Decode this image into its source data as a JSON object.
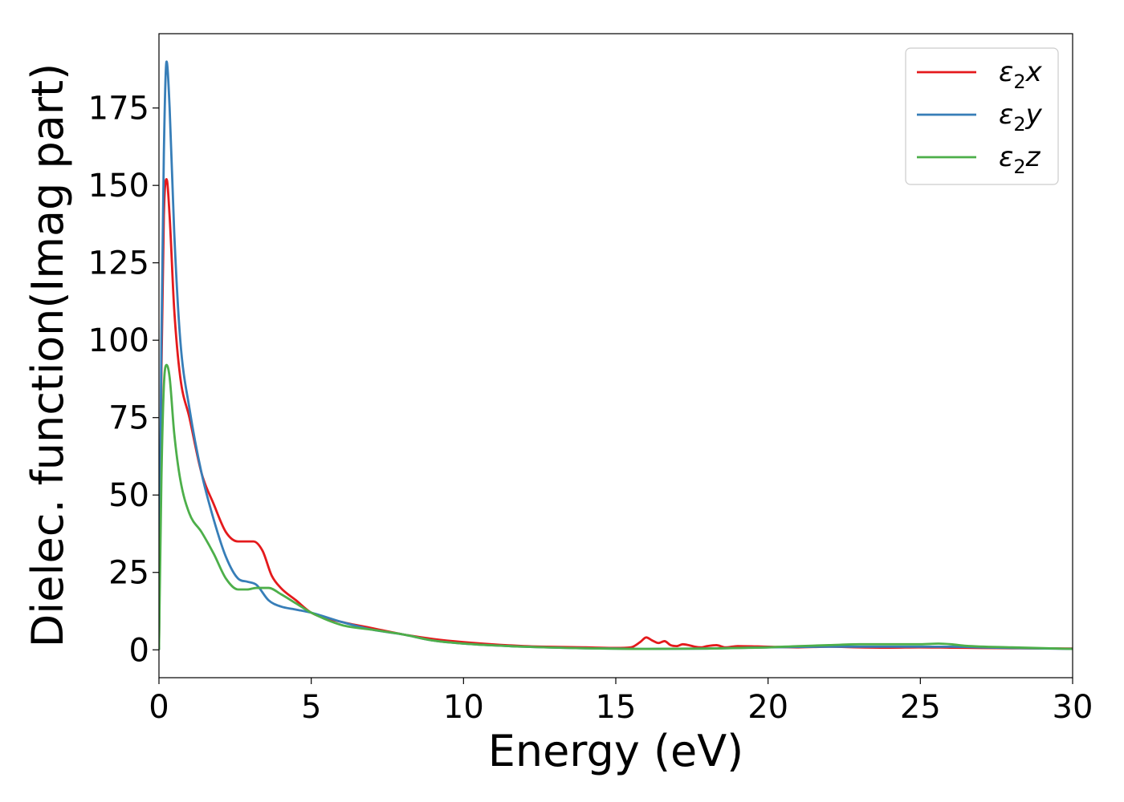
{
  "chart_data": {
    "type": "line",
    "xlabel": "Energy (eV)",
    "ylabel": "Dielec. function(Imag part)",
    "xlim": [
      0,
      30
    ],
    "ylim": [
      -9,
      199
    ],
    "xticks": [
      0,
      5,
      10,
      15,
      20,
      25,
      30
    ],
    "yticks": [
      0,
      25,
      50,
      75,
      100,
      125,
      150,
      175
    ],
    "grid": false,
    "legend_position": "top-right",
    "series": [
      {
        "name": "ε2x",
        "legend": {
          "base": "ε",
          "sub": "2",
          "suffix": "x"
        },
        "color": "#e41a1c",
        "x": [
          0,
          0.08,
          0.16,
          0.25,
          0.35,
          0.5,
          0.7,
          1.0,
          1.4,
          1.8,
          2.2,
          2.6,
          2.9,
          3.1,
          3.4,
          3.7,
          4.0,
          4.5,
          5.0,
          6.0,
          7.0,
          8.0,
          9.0,
          10.0,
          12.0,
          14.0,
          15.0,
          15.5,
          15.8,
          16.0,
          16.2,
          16.4,
          16.6,
          16.8,
          17.0,
          17.2,
          17.4,
          17.6,
          17.8,
          18.0,
          18.3,
          18.6,
          19.0,
          20.0,
          21.0,
          22.0,
          23.0,
          24.0,
          25.0,
          26.0,
          27.0,
          28.0,
          30.0
        ],
        "y": [
          0,
          90,
          140,
          152,
          140,
          110,
          88,
          75,
          57,
          47,
          38,
          35,
          35,
          35,
          32,
          24,
          20,
          16,
          12,
          9,
          7,
          5,
          3.5,
          2.5,
          1.2,
          0.8,
          0.6,
          0.8,
          2.5,
          4,
          3,
          2.2,
          2.8,
          1.5,
          1.2,
          1.8,
          1.5,
          1,
          0.8,
          1.2,
          1.5,
          0.8,
          1.2,
          1.0,
          0.8,
          1.0,
          0.8,
          0.7,
          0.8,
          0.7,
          0.6,
          0.5,
          0.4
        ]
      },
      {
        "name": "ε2y",
        "legend": {
          "base": "ε",
          "sub": "2",
          "suffix": "y"
        },
        "color": "#377eb8",
        "x": [
          0,
          0.08,
          0.16,
          0.25,
          0.35,
          0.5,
          0.7,
          1.0,
          1.4,
          1.8,
          2.2,
          2.6,
          2.9,
          3.2,
          3.6,
          4.0,
          4.5,
          5.0,
          6.0,
          7.0,
          8.0,
          9.0,
          10.0,
          12.0,
          14.0,
          15.0,
          16.0,
          18.0,
          20.0,
          22.0,
          23.0,
          24.0,
          25.0,
          26.0,
          27.0,
          28.0,
          30.0
        ],
        "y": [
          0,
          100,
          160,
          190,
          175,
          135,
          100,
          78,
          57,
          42,
          30,
          23,
          22,
          21,
          16,
          14,
          13,
          12,
          9,
          6.5,
          5,
          3,
          2,
          1,
          0.5,
          0.4,
          0.3,
          0.4,
          0.8,
          1.0,
          1.0,
          1.0,
          1.0,
          1.0,
          0.8,
          0.6,
          0.3
        ]
      },
      {
        "name": "ε2z",
        "legend": {
          "base": "ε",
          "sub": "2",
          "suffix": "z"
        },
        "color": "#4daf4a",
        "x": [
          0,
          0.08,
          0.16,
          0.25,
          0.35,
          0.5,
          0.7,
          1.0,
          1.4,
          1.8,
          2.2,
          2.6,
          2.9,
          3.2,
          3.6,
          4.0,
          4.5,
          5.0,
          6.0,
          7.0,
          8.0,
          9.0,
          10.0,
          12.0,
          14.0,
          16.0,
          18.0,
          19.0,
          20.0,
          21.0,
          22.0,
          23.0,
          24.0,
          25.0,
          25.6,
          26.0,
          26.5,
          28.0,
          30.0
        ],
        "y": [
          0,
          55,
          85,
          92,
          88,
          70,
          55,
          44,
          38,
          31,
          23,
          19.5,
          19.5,
          20,
          20,
          18,
          15,
          12,
          8,
          6.5,
          5,
          3,
          2,
          1,
          0.5,
          0.3,
          0.4,
          0.6,
          0.8,
          1.2,
          1.5,
          1.8,
          1.8,
          1.8,
          2.0,
          1.8,
          1.3,
          0.8,
          0.3
        ]
      }
    ]
  }
}
